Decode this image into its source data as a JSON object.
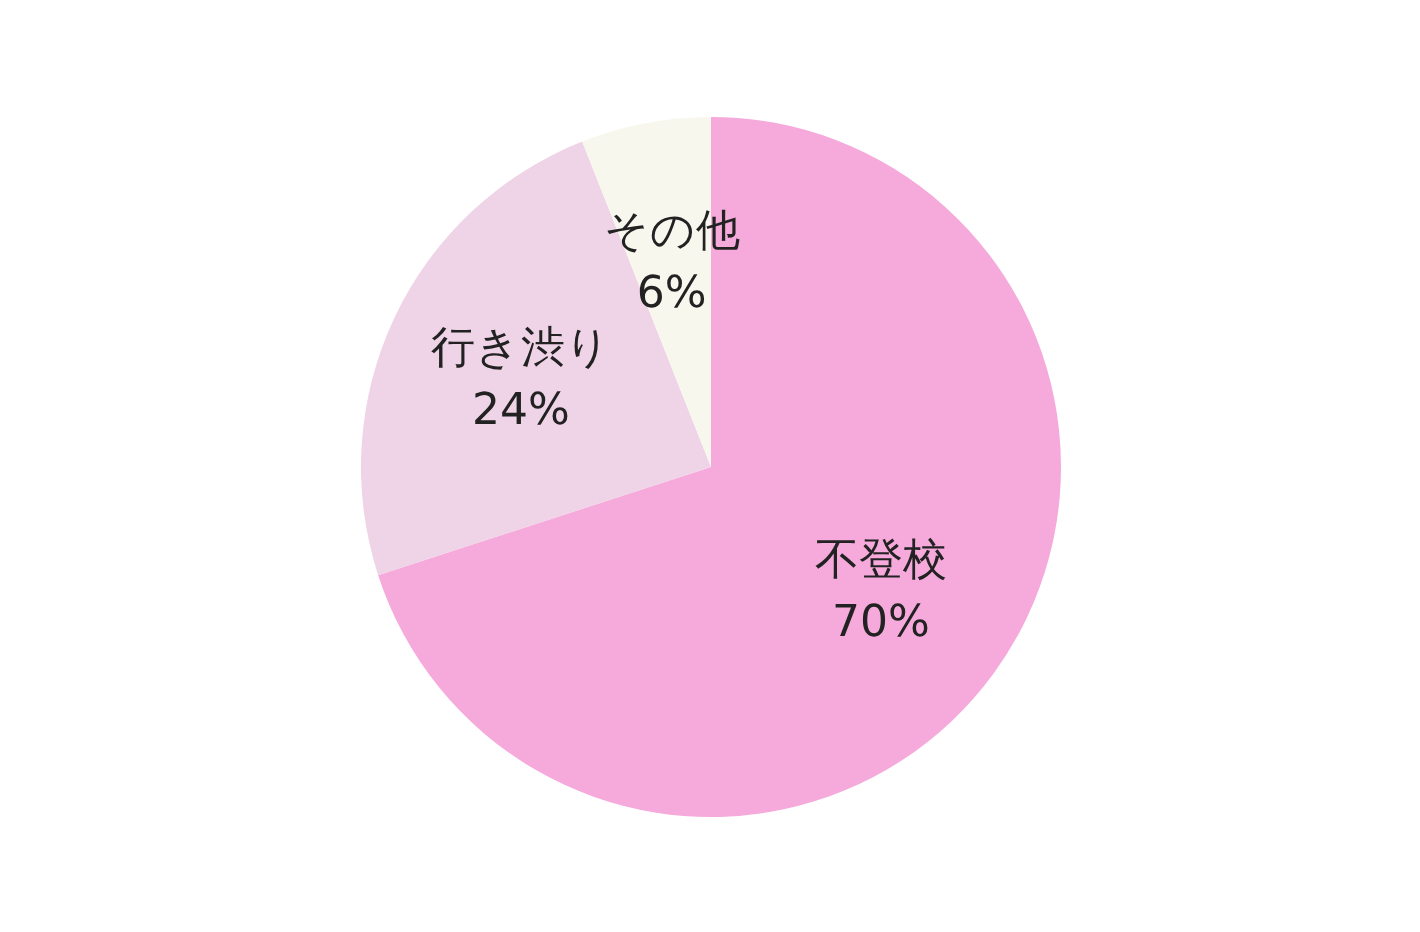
{
  "chart_data": {
    "type": "pie",
    "categories": [
      "不登校",
      "行き渋り",
      "その他"
    ],
    "values": [
      70,
      24,
      6
    ],
    "colors": [
      "#f5aadb",
      "#efd3e6",
      "#f8f7ee"
    ],
    "value_labels": [
      "70%",
      "24%",
      "6%"
    ]
  }
}
